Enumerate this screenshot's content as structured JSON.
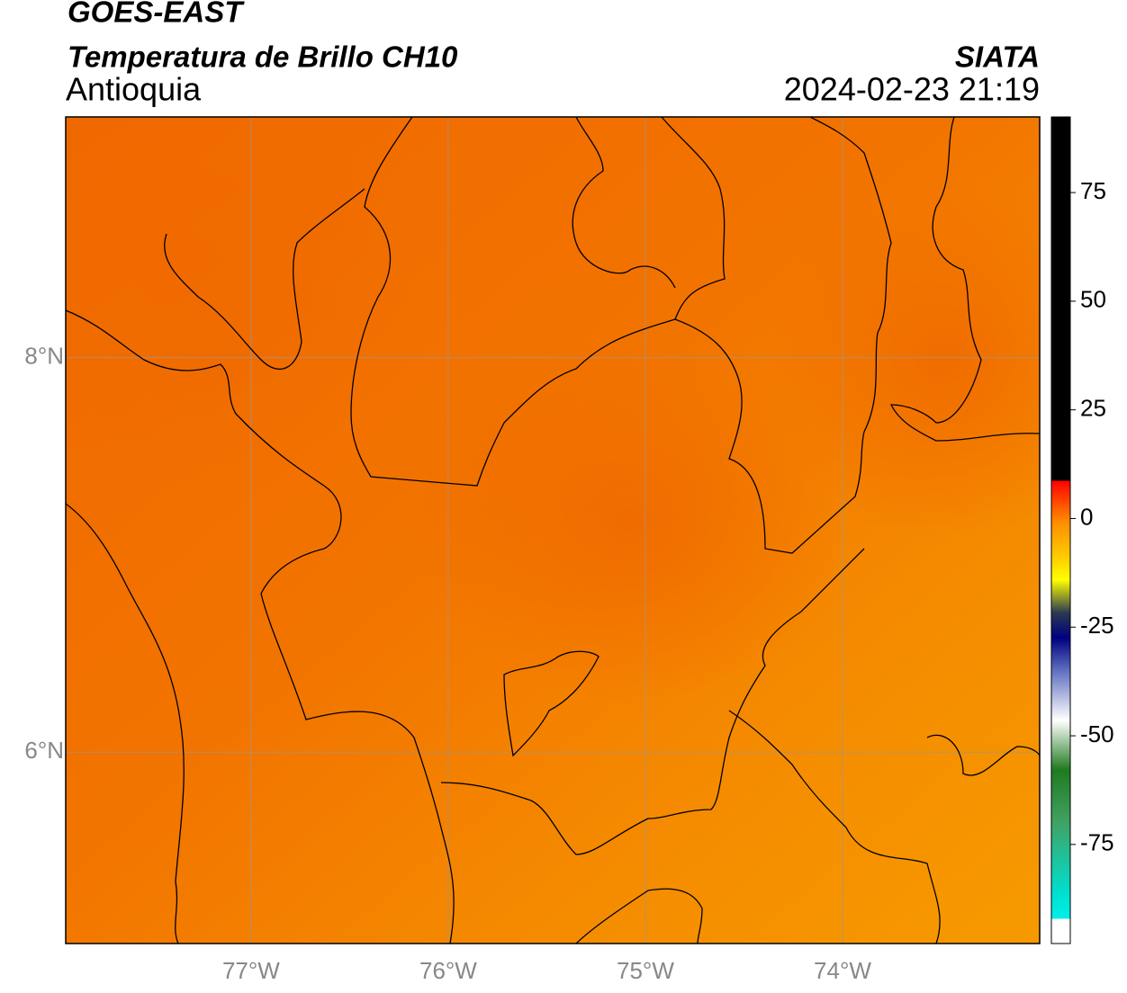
{
  "header": {
    "title": "GOES-EAST",
    "subtitle": "Temperatura de Brillo CH10",
    "region": "Antioquia",
    "source": "SIATA",
    "datetime": "2024-02-23 21:19"
  },
  "map": {
    "xlim": [
      -77.94,
      -73.0
    ],
    "ylim": [
      5.03,
      9.22
    ],
    "xticks": [
      {
        "value": -77,
        "label": "77°W"
      },
      {
        "value": -76,
        "label": "76°W"
      },
      {
        "value": -75,
        "label": "75°W"
      },
      {
        "value": -74,
        "label": "74°W"
      }
    ],
    "yticks": [
      {
        "value": 8,
        "label": "8°N"
      },
      {
        "value": 6,
        "label": "6°N"
      }
    ]
  },
  "colorbar": {
    "lim": [
      -97.8,
      92.4
    ],
    "ticks": [
      75,
      50,
      25,
      0,
      -25,
      -50,
      -75
    ]
  }
}
